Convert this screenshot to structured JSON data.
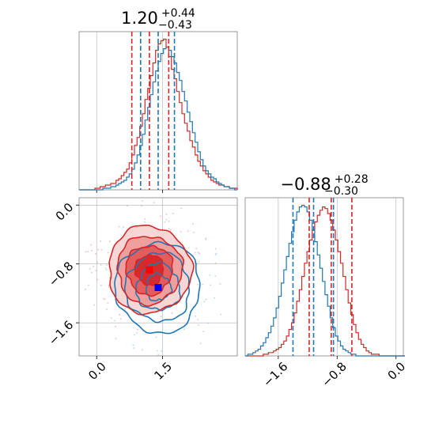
{
  "chart_data": {
    "type": "corner",
    "colors": {
      "red": "#d62728",
      "blue": "#1f77b4",
      "grid": "#b0b0b0",
      "spine": "#808080"
    },
    "parameters": [
      {
        "title_value": "1.20",
        "title_plus": "+0.44",
        "title_minus": "−0.43",
        "range": [
          -0.4,
          3.2
        ],
        "ticks": [
          0.0,
          1.5
        ],
        "tick_labels": [
          "0.0",
          "1.5"
        ],
        "red_quantiles": [
          0.8,
          1.2,
          1.64
        ],
        "blue_quantiles": [
          1.0,
          1.4,
          1.77
        ]
      },
      {
        "title_value": "−0.88",
        "title_plus": "+0.28",
        "title_minus": "−0.30",
        "range": [
          -2.05,
          0.1
        ],
        "ticks": [
          -1.6,
          -0.8,
          0.0
        ],
        "tick_labels": [
          "−1.6",
          "−0.8",
          "0.0"
        ],
        "red_quantiles": [
          -1.18,
          -0.88,
          -0.6
        ],
        "blue_quantiles": [
          -1.4,
          -1.12,
          -0.85
        ]
      }
    ],
    "histograms": {
      "p1": {
        "bin_start": -0.4,
        "bin_width": 0.06,
        "red": [
          0,
          0,
          0,
          0,
          0,
          0,
          1,
          1,
          2,
          2,
          3,
          3,
          4,
          4,
          6,
          7,
          9,
          11,
          13,
          17,
          22,
          28,
          33,
          40,
          48,
          57,
          64,
          72,
          80,
          88,
          92,
          94,
          95,
          90,
          84,
          76,
          70,
          62,
          55,
          48,
          42,
          37,
          31,
          27,
          22,
          18,
          15,
          12,
          10,
          8,
          6,
          5,
          4,
          3,
          3,
          2,
          2,
          1,
          1,
          1
        ],
        "blue": [
          0,
          0,
          0,
          0,
          0,
          0,
          0,
          0,
          0,
          1,
          1,
          1,
          2,
          2,
          3,
          4,
          5,
          6,
          8,
          10,
          13,
          17,
          22,
          28,
          35,
          44,
          52,
          60,
          68,
          75,
          81,
          86,
          89,
          90,
          88,
          84,
          80,
          74,
          69,
          62,
          56,
          49,
          43,
          36,
          30,
          24,
          19,
          15,
          12,
          10,
          8,
          7,
          5,
          4,
          3,
          2,
          2,
          1,
          1,
          0
        ]
      },
      "p2": {
        "bin_start": -2.05,
        "bin_width": 0.035,
        "red": [
          0,
          0,
          0,
          0,
          0,
          0,
          0,
          1,
          1,
          2,
          2,
          3,
          4,
          5,
          7,
          9,
          12,
          16,
          20,
          26,
          33,
          40,
          48,
          56,
          63,
          70,
          76,
          81,
          85,
          88,
          90,
          89,
          86,
          82,
          76,
          70,
          63,
          56,
          48,
          40,
          32,
          25,
          19,
          14,
          10,
          7,
          5,
          3,
          2,
          1,
          1,
          1,
          0,
          0,
          0,
          0,
          0,
          0,
          0,
          0,
          0,
          0
        ],
        "blue": [
          0,
          1,
          1,
          2,
          3,
          4,
          6,
          8,
          11,
          14,
          18,
          23,
          29,
          36,
          44,
          52,
          60,
          68,
          75,
          82,
          87,
          90,
          91,
          90,
          87,
          82,
          76,
          69,
          61,
          53,
          45,
          37,
          30,
          23,
          17,
          12,
          9,
          6,
          4,
          3,
          2,
          1,
          1,
          0,
          0,
          0,
          0,
          0,
          0,
          0,
          0,
          0,
          0,
          0,
          0,
          0,
          0,
          0,
          0,
          0,
          0,
          0
        ]
      }
    },
    "contour_2d": {
      "red_center": [
        1.2,
        -0.88
      ],
      "red_sigma": [
        0.46,
        0.29
      ],
      "blue_center": [
        1.4,
        -1.12
      ],
      "blue_sigma": [
        0.47,
        0.3
      ],
      "red_marker": [
        1.2,
        -0.88
      ],
      "blue_marker": [
        1.4,
        -1.12
      ]
    }
  }
}
